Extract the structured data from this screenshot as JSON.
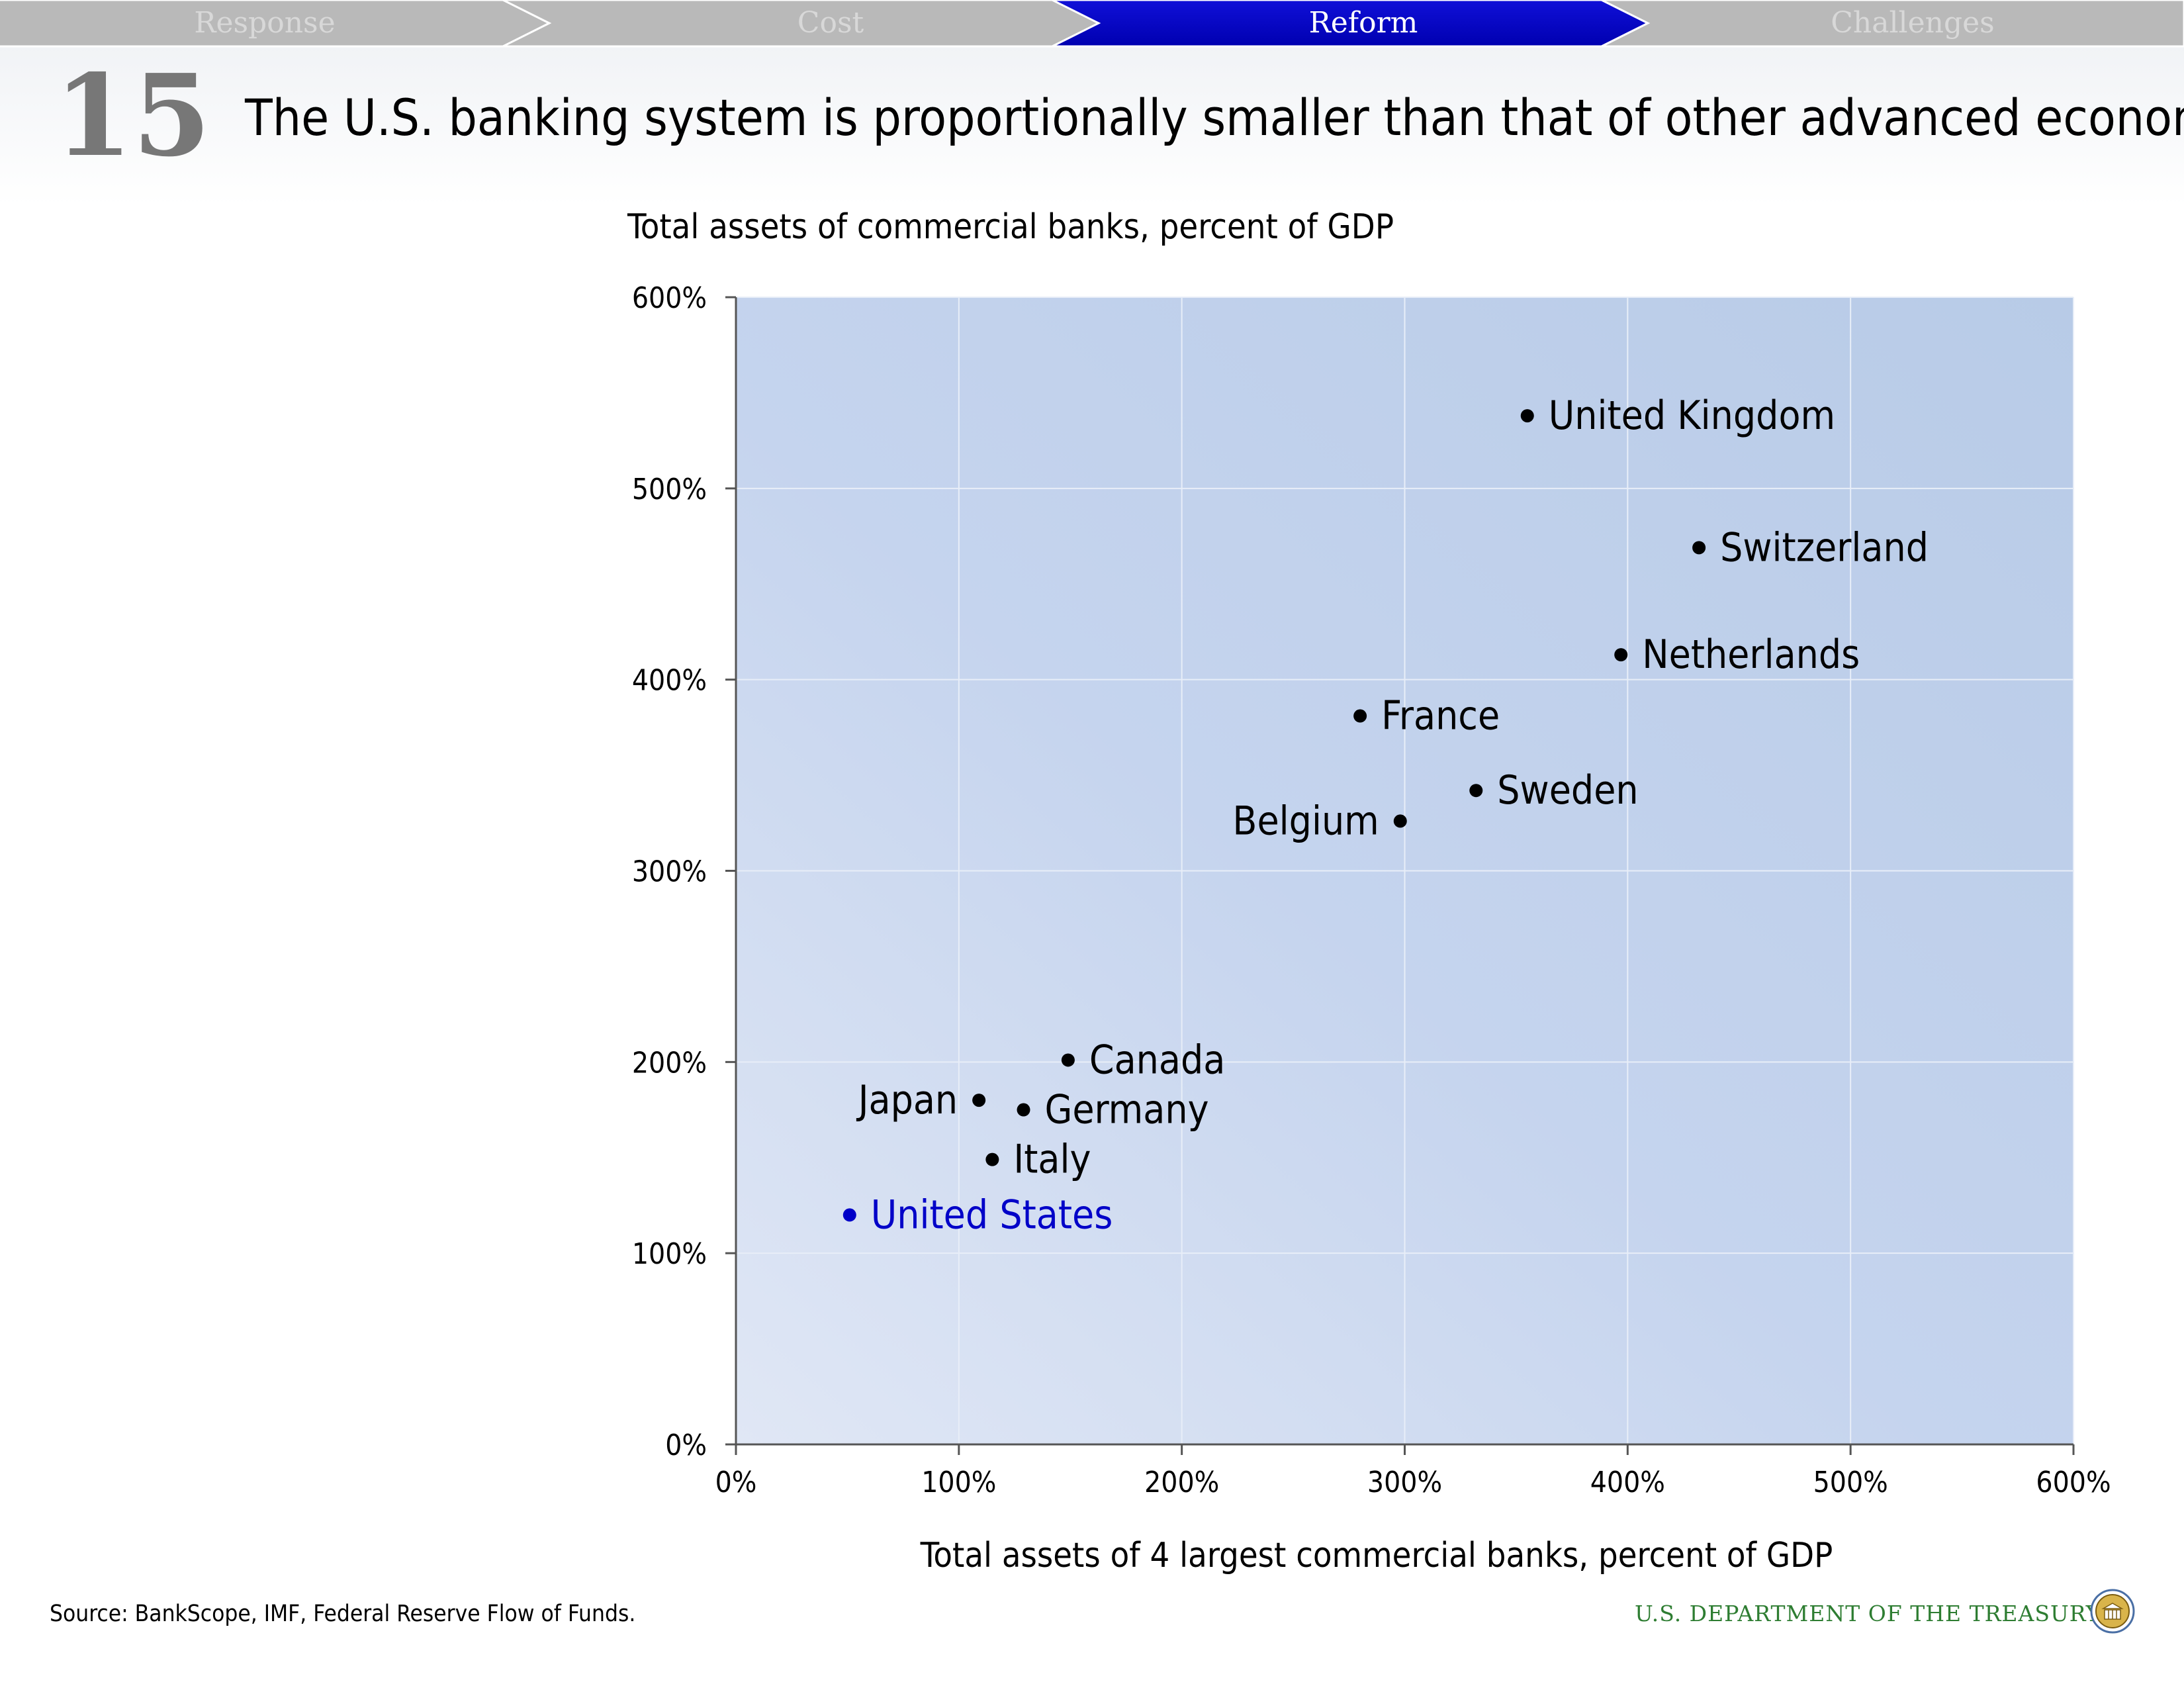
{
  "nav": {
    "tabs": [
      {
        "label": "Response",
        "active": false
      },
      {
        "label": "Cost",
        "active": false
      },
      {
        "label": "Reform",
        "active": true
      },
      {
        "label": "Challenges",
        "active": false
      }
    ],
    "inactive_color": "#b9b9b9",
    "active_color": "#0000c8"
  },
  "slide": {
    "number": "15",
    "title": "The U.S. banking system is proportionally smaller than that of other advanced economies"
  },
  "chart_data": {
    "type": "scatter",
    "ylabel": "Total assets of commercial banks, percent of GDP",
    "xlabel": "Total assets of 4 largest commercial banks, percent of GDP",
    "xlim": [
      0,
      600
    ],
    "ylim": [
      0,
      600
    ],
    "xticks": [
      "0%",
      "100%",
      "200%",
      "300%",
      "400%",
      "500%",
      "600%"
    ],
    "yticks": [
      "0%",
      "100%",
      "200%",
      "300%",
      "400%",
      "500%",
      "600%"
    ],
    "grid": true,
    "points": [
      {
        "label": "United Kingdom",
        "x": 355,
        "y": 538,
        "label_side": "right",
        "color": "#000000"
      },
      {
        "label": "Switzerland",
        "x": 432,
        "y": 469,
        "label_side": "right",
        "color": "#000000"
      },
      {
        "label": "Netherlands",
        "x": 397,
        "y": 413,
        "label_side": "right",
        "color": "#000000"
      },
      {
        "label": "France",
        "x": 280,
        "y": 381,
        "label_side": "right",
        "color": "#000000"
      },
      {
        "label": "Sweden",
        "x": 332,
        "y": 342,
        "label_side": "right",
        "color": "#000000"
      },
      {
        "label": "Belgium",
        "x": 298,
        "y": 326,
        "label_side": "left",
        "color": "#000000"
      },
      {
        "label": "Canada",
        "x": 149,
        "y": 201,
        "label_side": "right",
        "color": "#000000"
      },
      {
        "label": "Japan",
        "x": 109,
        "y": 180,
        "label_side": "left",
        "color": "#000000"
      },
      {
        "label": "Germany",
        "x": 129,
        "y": 175,
        "label_side": "right",
        "color": "#000000"
      },
      {
        "label": "Italy",
        "x": 115,
        "y": 149,
        "label_side": "right",
        "color": "#000000"
      },
      {
        "label": "United States",
        "x": 51,
        "y": 120,
        "label_side": "right",
        "color": "#0000c8"
      }
    ]
  },
  "footer": {
    "source": "Source: BankScope, IMF, Federal Reserve Flow of Funds.",
    "department": "U.S. DEPARTMENT OF THE TREASURY"
  }
}
